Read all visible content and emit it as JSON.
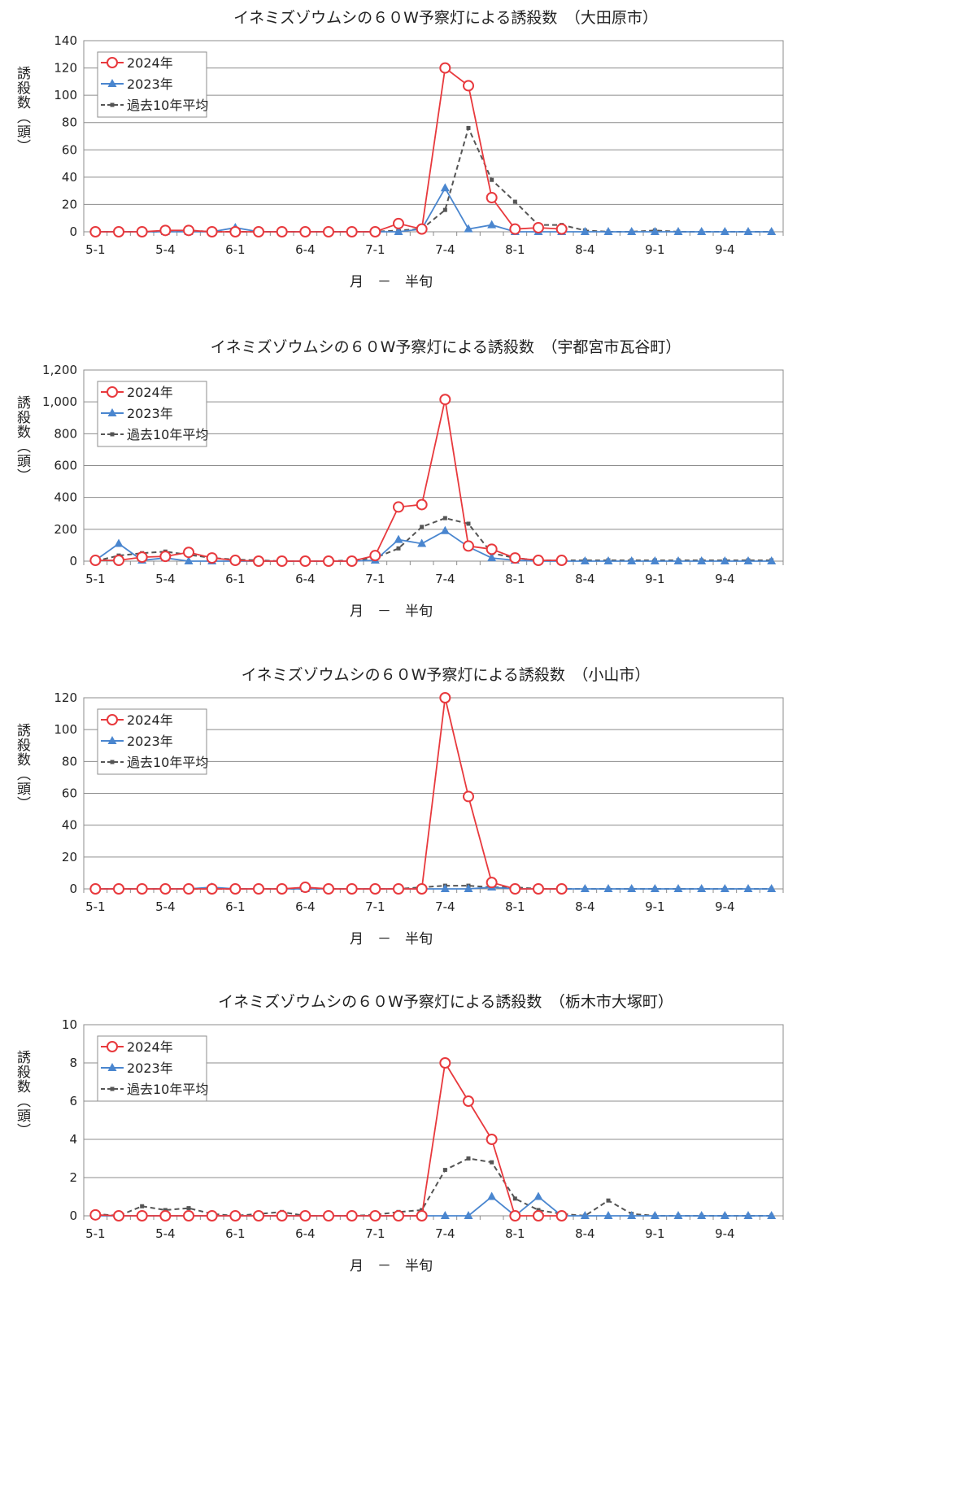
{
  "chart_data": [
    {
      "type": "line",
      "title": "イネミズゾウムシの６０W予察灯による誘殺数　（大田原市）",
      "xlabel": "月　－　半旬",
      "ylabel": "誘殺数（頭）",
      "ylim": [
        0,
        140
      ],
      "yticks": [
        "0",
        "20",
        "40",
        "60",
        "80",
        "100",
        "120",
        "140"
      ],
      "categories": [
        "5-1",
        "5-2",
        "5-3",
        "5-4",
        "5-5",
        "5-6",
        "6-1",
        "6-2",
        "6-3",
        "6-4",
        "6-5",
        "6-6",
        "7-1",
        "7-2",
        "7-3",
        "7-4",
        "7-5",
        "7-6",
        "8-1",
        "8-2",
        "8-3",
        "8-4",
        "8-5",
        "8-6",
        "9-1",
        "9-2",
        "9-3",
        "9-4",
        "9-5",
        "9-6"
      ],
      "tick_labels": [
        "5-1",
        "",
        "",
        "5-4",
        "",
        "",
        "6-1",
        "",
        "",
        "6-4",
        "",
        "",
        "7-1",
        "",
        "",
        "7-4",
        "",
        "",
        "8-1",
        "",
        "",
        "8-4",
        "",
        "",
        "9-1",
        "",
        "",
        "9-4",
        "",
        ""
      ],
      "legend": "top-left",
      "grid": true,
      "series": [
        {
          "name": "2024年",
          "color": "#e8393d",
          "marker": "circle",
          "values": [
            0,
            0,
            0,
            1,
            1,
            0,
            0,
            0,
            0,
            0,
            0,
            0,
            0,
            6,
            2,
            120,
            107,
            25,
            2,
            3,
            2,
            null,
            null,
            null,
            null,
            null,
            null,
            null,
            null,
            null
          ]
        },
        {
          "name": "2023年",
          "color": "#4a86cf",
          "marker": "triangle",
          "values": [
            0,
            0,
            0,
            0,
            0,
            0,
            3,
            0,
            0,
            0,
            0,
            0,
            0,
            0,
            2,
            32,
            2,
            5,
            0,
            0,
            0,
            0,
            0,
            0,
            0,
            0,
            0,
            0,
            0,
            0
          ]
        },
        {
          "name": "過去10年平均",
          "color": "#555555",
          "marker": "square",
          "dashed": true,
          "values": [
            0,
            0,
            0,
            0,
            1,
            0,
            0,
            0,
            0,
            0,
            0,
            0,
            0,
            1,
            2,
            16,
            76,
            38,
            22,
            5,
            5,
            1,
            0,
            0,
            1,
            0,
            0,
            0,
            0,
            0
          ]
        }
      ]
    },
    {
      "type": "line",
      "title": "イネミズゾウムシの６０W予察灯による誘殺数　（宇都宮市瓦谷町）",
      "xlabel": "月　－　半旬",
      "ylabel": "誘殺数（頭）",
      "ylim": [
        0,
        1200
      ],
      "yticks": [
        "0",
        "200",
        "400",
        "600",
        "800",
        "1,000",
        "1,200"
      ],
      "categories": [
        "5-1",
        "5-2",
        "5-3",
        "5-4",
        "5-5",
        "5-6",
        "6-1",
        "6-2",
        "6-3",
        "6-4",
        "6-5",
        "6-6",
        "7-1",
        "7-2",
        "7-3",
        "7-4",
        "7-5",
        "7-6",
        "8-1",
        "8-2",
        "8-3",
        "8-4",
        "8-5",
        "8-6",
        "9-1",
        "9-2",
        "9-3",
        "9-4",
        "9-5",
        "9-6"
      ],
      "tick_labels": [
        "5-1",
        "",
        "",
        "5-4",
        "",
        "",
        "6-1",
        "",
        "",
        "6-4",
        "",
        "",
        "7-1",
        "",
        "",
        "7-4",
        "",
        "",
        "8-1",
        "",
        "",
        "8-4",
        "",
        "",
        "9-1",
        "",
        "",
        "9-4",
        "",
        ""
      ],
      "legend": "top-left",
      "grid": true,
      "series": [
        {
          "name": "2024年",
          "color": "#e8393d",
          "marker": "circle",
          "values": [
            5,
            5,
            25,
            30,
            55,
            20,
            5,
            0,
            0,
            0,
            0,
            0,
            35,
            340,
            355,
            1015,
            95,
            75,
            20,
            5,
            5,
            null,
            null,
            null,
            null,
            null,
            null,
            null,
            null,
            null
          ]
        },
        {
          "name": "2023年",
          "color": "#4a86cf",
          "marker": "triangle",
          "values": [
            5,
            110,
            5,
            20,
            0,
            0,
            0,
            0,
            0,
            0,
            0,
            0,
            5,
            135,
            110,
            190,
            90,
            20,
            5,
            0,
            0,
            0,
            0,
            0,
            0,
            0,
            0,
            0,
            0,
            0
          ]
        },
        {
          "name": "過去10年平均",
          "color": "#555555",
          "marker": "square",
          "dashed": true,
          "values": [
            0,
            35,
            50,
            60,
            40,
            20,
            10,
            5,
            0,
            0,
            0,
            5,
            20,
            80,
            215,
            270,
            235,
            50,
            20,
            5,
            5,
            5,
            5,
            5,
            5,
            5,
            5,
            5,
            5,
            5
          ]
        }
      ]
    },
    {
      "type": "line",
      "title": "イネミズゾウムシの６０W予察灯による誘殺数　（小山市）",
      "xlabel": "月　－　半旬",
      "ylabel": "誘殺数（頭）",
      "ylim": [
        0,
        120
      ],
      "yticks": [
        "0",
        "20",
        "40",
        "60",
        "80",
        "100",
        "120"
      ],
      "categories": [
        "5-1",
        "5-2",
        "5-3",
        "5-4",
        "5-5",
        "5-6",
        "6-1",
        "6-2",
        "6-3",
        "6-4",
        "6-5",
        "6-6",
        "7-1",
        "7-2",
        "7-3",
        "7-4",
        "7-5",
        "7-6",
        "8-1",
        "8-2",
        "8-3",
        "8-4",
        "8-5",
        "8-6",
        "9-1",
        "9-2",
        "9-3",
        "9-4",
        "9-5",
        "9-6"
      ],
      "tick_labels": [
        "5-1",
        "",
        "",
        "5-4",
        "",
        "",
        "6-1",
        "",
        "",
        "6-4",
        "",
        "",
        "7-1",
        "",
        "",
        "7-4",
        "",
        "",
        "8-1",
        "",
        "",
        "8-4",
        "",
        "",
        "9-1",
        "",
        "",
        "9-4",
        "",
        ""
      ],
      "legend": "top-left",
      "grid": true,
      "series": [
        {
          "name": "2024年",
          "color": "#e8393d",
          "marker": "circle",
          "values": [
            0,
            0,
            0,
            0,
            0,
            0,
            0,
            0,
            0,
            1,
            0,
            0,
            0,
            0,
            0,
            120,
            58,
            4,
            0,
            0,
            0,
            null,
            null,
            null,
            null,
            null,
            null,
            null,
            null,
            null
          ]
        },
        {
          "name": "2023年",
          "color": "#4a86cf",
          "marker": "triangle",
          "values": [
            0,
            0,
            0,
            0,
            0,
            1,
            0,
            0,
            0,
            0,
            0,
            0,
            0,
            0,
            0,
            0,
            0,
            1,
            0,
            0,
            0,
            0,
            0,
            0,
            0,
            0,
            0,
            0,
            0,
            0
          ]
        },
        {
          "name": "過去10年平均",
          "color": "#555555",
          "marker": "square",
          "dashed": true,
          "values": [
            0,
            0,
            0,
            0,
            0,
            0,
            0,
            0,
            0,
            0,
            0,
            0,
            0,
            0,
            1,
            2,
            2,
            1,
            1,
            0,
            0,
            0,
            0,
            0,
            0,
            0,
            0,
            0,
            0,
            0
          ]
        }
      ]
    },
    {
      "type": "line",
      "title": "イネミズゾウムシの６０W予察灯による誘殺数　（栃木市大塚町）",
      "xlabel": "月　－　半旬",
      "ylabel": "誘殺数（頭）",
      "ylim": [
        0,
        10
      ],
      "yticks": [
        "0",
        "2",
        "4",
        "6",
        "8",
        "10"
      ],
      "categories": [
        "5-1",
        "5-2",
        "5-3",
        "5-4",
        "5-5",
        "5-6",
        "6-1",
        "6-2",
        "6-3",
        "6-4",
        "6-5",
        "6-6",
        "7-1",
        "7-2",
        "7-3",
        "7-4",
        "7-5",
        "7-6",
        "8-1",
        "8-2",
        "8-3",
        "8-4",
        "8-5",
        "8-6",
        "9-1",
        "9-2",
        "9-3",
        "9-4",
        "9-5",
        "9-6"
      ],
      "tick_labels": [
        "5-1",
        "",
        "",
        "5-4",
        "",
        "",
        "6-1",
        "",
        "",
        "6-4",
        "",
        "",
        "7-1",
        "",
        "",
        "7-4",
        "",
        "",
        "8-1",
        "",
        "",
        "8-4",
        "",
        "",
        "9-1",
        "",
        "",
        "9-4",
        "",
        ""
      ],
      "legend": "top-left",
      "grid": true,
      "series": [
        {
          "name": "2024年",
          "color": "#e8393d",
          "marker": "circle",
          "values": [
            0.05,
            0,
            0,
            0,
            0,
            0,
            0,
            0,
            0,
            0,
            0,
            0,
            0,
            0,
            0,
            8,
            6,
            4,
            0,
            0,
            0,
            null,
            null,
            null,
            null,
            null,
            null,
            null,
            null,
            null
          ]
        },
        {
          "name": "2023年",
          "color": "#4a86cf",
          "marker": "triangle",
          "values": [
            0,
            0,
            0,
            0,
            0,
            0,
            0,
            0,
            0,
            0,
            0,
            0,
            0,
            0,
            0,
            0,
            0,
            1,
            0,
            1,
            0,
            0,
            0,
            0,
            0,
            0,
            0,
            0,
            0,
            0
          ]
        },
        {
          "name": "過去10年平均",
          "color": "#555555",
          "marker": "square",
          "dashed": true,
          "values": [
            0.1,
            0,
            0.5,
            0.3,
            0.4,
            0.1,
            0,
            0.1,
            0.2,
            0,
            0,
            0,
            0.05,
            0.2,
            0.3,
            2.4,
            3,
            2.8,
            0.9,
            0.3,
            0.1,
            0,
            0.8,
            0.1,
            0,
            0,
            0,
            0,
            0,
            0
          ]
        }
      ]
    }
  ]
}
